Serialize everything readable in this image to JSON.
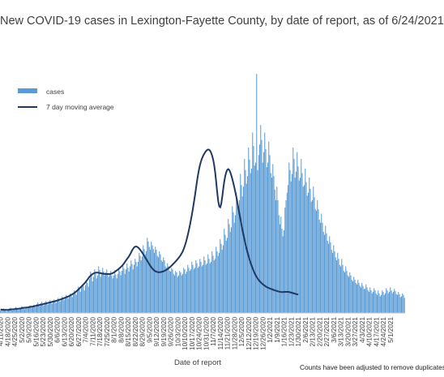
{
  "chart_data": {
    "type": "bar",
    "title": "New COVID-19 cases in Lexington-Fayette County, by date of report, as of 6/24/2021",
    "xlabel": "Date of report",
    "ylabel": "",
    "footnote": "Counts have been adjusted to remove duplicates",
    "legend_position": "top-left",
    "grid": false,
    "ylim": [
      0,
      330
    ],
    "colors": {
      "bars": "#5b9bd5",
      "line": "#1f3864"
    },
    "x_tick_labels": [
      "4/11/2020",
      "4/18/2020",
      "4/25/2020",
      "5/2/2020",
      "5/9/2020",
      "5/16/2020",
      "5/23/2020",
      "5/30/2020",
      "6/6/2020",
      "6/13/2020",
      "6/20/2020",
      "6/27/2020",
      "7/4/2020",
      "7/11/2020",
      "7/18/2020",
      "7/25/2020",
      "8/1/2020",
      "8/8/2020",
      "8/15/2020",
      "8/22/2020",
      "8/29/2020",
      "9/5/2020",
      "9/12/2020",
      "9/19/2020",
      "9/26/2020",
      "10/3/2020",
      "10/10/2020",
      "10/17/2020",
      "10/24/2020",
      "10/31/2020",
      "11/7/2020",
      "11/14/2020",
      "11/21/2020",
      "11/28/2020",
      "12/5/2020",
      "12/12/2020",
      "12/19/2020",
      "12/26/2020",
      "1/2/2021",
      "1/9/2021",
      "1/16/2021",
      "1/23/2021",
      "1/30/2021",
      "2/6/2021",
      "2/13/2021",
      "2/20/2021",
      "2/27/2021",
      "3/6/2021",
      "3/13/2021",
      "3/20/2021",
      "3/27/2021",
      "4/3/2021",
      "4/10/2021",
      "4/17/2021",
      "4/24/2021",
      "5/1/2021"
    ],
    "series": [
      {
        "name": "cases",
        "x_start": "2020-04-11",
        "values": [
          3,
          5,
          4,
          6,
          5,
          3,
          2,
          4,
          5,
          6,
          7,
          4,
          3,
          5,
          6,
          8,
          7,
          5,
          4,
          6,
          7,
          9,
          8,
          6,
          5,
          7,
          8,
          6,
          9,
          10,
          8,
          7,
          9,
          11,
          10,
          8,
          12,
          14,
          11,
          9,
          13,
          15,
          12,
          10,
          14,
          16,
          13,
          11,
          15,
          17,
          14,
          12,
          16,
          18,
          15,
          13,
          17,
          20,
          18,
          15,
          19,
          22,
          20,
          17,
          21,
          24,
          22,
          19,
          23,
          26,
          24,
          21,
          26,
          30,
          28,
          24,
          30,
          35,
          32,
          28,
          34,
          38,
          36,
          30,
          37,
          42,
          40,
          35,
          45,
          55,
          50,
          42,
          48,
          58,
          52,
          46,
          50,
          62,
          57,
          48,
          52,
          60,
          55,
          50,
          54,
          58,
          53,
          48,
          52,
          56,
          50,
          46,
          50,
          57,
          51,
          46,
          52,
          60,
          55,
          50,
          56,
          64,
          59,
          52,
          58,
          66,
          60,
          55,
          62,
          70,
          65,
          58,
          64,
          72,
          68,
          62,
          68,
          80,
          76,
          70,
          75,
          90,
          85,
          78,
          82,
          100,
          95,
          88,
          84,
          95,
          90,
          85,
          80,
          88,
          84,
          76,
          74,
          82,
          78,
          70,
          68,
          74,
          70,
          62,
          60,
          66,
          62,
          56,
          55,
          60,
          58,
          52,
          50,
          56,
          54,
          48,
          50,
          56,
          54,
          50,
          52,
          60,
          58,
          52,
          55,
          64,
          60,
          56,
          58,
          68,
          64,
          58,
          60,
          70,
          66,
          60,
          62,
          72,
          68,
          62,
          64,
          75,
          70,
          64,
          66,
          78,
          72,
          66,
          68,
          82,
          76,
          70,
          72,
          88,
          82,
          76,
          80,
          98,
          92,
          84,
          90,
          112,
          104,
          96,
          100,
          125,
          118,
          108,
          114,
          142,
          134,
          120,
          130,
          160,
          152,
          138,
          150,
          185,
          170,
          155,
          168,
          205,
          190,
          172,
          182,
          220,
          204,
          186,
          192,
          240,
          222,
          196,
          200,
          318,
          190,
          210,
          224,
          250,
          230,
          200,
          214,
          240,
          218,
          194,
          200,
          228,
          210,
          186,
          180,
          198,
          182,
          164,
          150,
          168,
          150,
          130,
          118,
          128,
          112,
          102,
          110,
          140,
          150,
          160,
          170,
          200,
          190,
          175,
          185,
          220,
          205,
          180,
          188,
          214,
          195,
          176,
          180,
          205,
          186,
          168,
          170,
          192,
          174,
          156,
          160,
          180,
          165,
          148,
          150,
          168,
          154,
          138,
          136,
          150,
          138,
          124,
          120,
          132,
          120,
          108,
          104,
          116,
          106,
          96,
          92,
          102,
          94,
          84,
          80,
          90,
          82,
          74,
          70,
          80,
          72,
          64,
          62,
          72,
          64,
          56,
          54,
          62,
          56,
          50,
          48,
          54,
          50,
          44,
          42,
          48,
          44,
          40,
          38,
          44,
          40,
          36,
          34,
          40,
          36,
          32,
          32,
          38,
          34,
          30,
          28,
          34,
          30,
          26,
          28,
          33,
          30,
          26,
          24,
          30,
          26,
          22,
          24,
          30,
          28,
          24,
          26,
          33,
          30,
          26,
          28,
          34,
          30,
          26,
          28,
          32,
          29,
          25,
          24,
          28,
          25,
          21,
          22,
          26,
          24,
          20
        ]
      },
      {
        "name": "7 day moving average",
        "x_start": "2020-04-11",
        "values": [
          4.5,
          4.4,
          4.3,
          4.2,
          4.1,
          4.2,
          4.1,
          4.1,
          4.2,
          4.4,
          4.6,
          4.8,
          4.8,
          5.0,
          5.1,
          5.3,
          5.4,
          5.6,
          5.7,
          5.9,
          6.1,
          6.4,
          6.7,
          6.9,
          7.0,
          7.1,
          7.3,
          7.4,
          7.6,
          7.9,
          8.3,
          8.4,
          8.6,
          8.9,
          9.3,
          9.5,
          9.8,
          10.1,
          10.5,
          10.8,
          11.1,
          11.4,
          11.8,
          12.1,
          12.4,
          12.7,
          13.1,
          13.4,
          13.8,
          14.1,
          14.4,
          14.8,
          15.1,
          15.4,
          15.8,
          16.1,
          16.6,
          17.0,
          17.5,
          17.9,
          18.4,
          18.9,
          19.4,
          19.9,
          20.4,
          21.0,
          21.5,
          22.0,
          22.7,
          23.4,
          24.1,
          24.9,
          25.8,
          26.8,
          27.8,
          28.9,
          30.1,
          31.4,
          32.7,
          34.0,
          35.4,
          36.7,
          38.1,
          39.6,
          41.1,
          42.9,
          44.7,
          46.6,
          48.3,
          49.7,
          50.9,
          51.9,
          52.6,
          53.2,
          53.6,
          53.7,
          53.6,
          53.4,
          53.1,
          52.9,
          52.6,
          52.3,
          52.0,
          51.9,
          51.8,
          51.7,
          51.7,
          51.7,
          51.8,
          52.1,
          52.5,
          53.1,
          53.9,
          54.8,
          55.8,
          56.8,
          57.8,
          58.9,
          60.1,
          61.4,
          62.8,
          64.3,
          66.1,
          68.0,
          70.0,
          71.9,
          73.7,
          75.7,
          78.0,
          80.7,
          83.3,
          85.6,
          87.3,
          88.2,
          88.4,
          87.9,
          86.9,
          85.5,
          83.9,
          82.0,
          80.0,
          77.9,
          75.7,
          73.5,
          71.3,
          69.1,
          66.9,
          64.7,
          62.5,
          60.6,
          58.9,
          57.5,
          56.3,
          55.4,
          54.8,
          54.4,
          54.2,
          54.2,
          54.3,
          54.6,
          55.0,
          55.5,
          56.1,
          56.8,
          57.6,
          58.5,
          59.5,
          60.6,
          61.8,
          63.1,
          64.4,
          65.8,
          67.2,
          68.7,
          70.2,
          71.8,
          73.5,
          75.3,
          77.3,
          79.5,
          82.2,
          85.5,
          89.3,
          93.7,
          98.7,
          104.2,
          110.2,
          116.7,
          123.7,
          131.1,
          139.0,
          147.4,
          156.3,
          165.6,
          175.0,
          183.6,
          190.9,
          197.0,
          201.9,
          205.7,
          208.8,
          211.3,
          213.6,
          215.5,
          216.8,
          217.4,
          217.1,
          215.6,
          212.9,
          209.1,
          203.7,
          196.4,
          186.4,
          173.7,
          160.0,
          148.4,
          141.6,
          140.6,
          145.6,
          155.1,
          166.0,
          175.6,
          182.7,
          187.7,
          190.6,
          191.3,
          189.9,
          186.7,
          182.5,
          177.6,
          172.2,
          166.3,
          160.0,
          153.2,
          146.0,
          138.6,
          131.2,
          123.9,
          116.7,
          109.8,
          103.2,
          96.9,
          90.9,
          85.3,
          80.1,
          75.2,
          70.7,
          66.5,
          62.6,
          59.0,
          55.7,
          52.7,
          50.0,
          47.6,
          45.5,
          43.7,
          42.1,
          40.7,
          39.4,
          38.2,
          37.1,
          36.1,
          35.2,
          34.4,
          33.7,
          33.1,
          32.5,
          32.0,
          31.5,
          31.0,
          30.5,
          30.0,
          29.6,
          29.2,
          28.8,
          28.4,
          28.1,
          27.9,
          27.8,
          27.8,
          27.9,
          28.0,
          28.1,
          28.1,
          28.0,
          27.8,
          27.5,
          27.1,
          26.7,
          26.3,
          25.9,
          25.5,
          25.1,
          24.7,
          24.3
        ]
      }
    ]
  },
  "legend": {
    "items": [
      "cases",
      "7 day moving average"
    ]
  }
}
